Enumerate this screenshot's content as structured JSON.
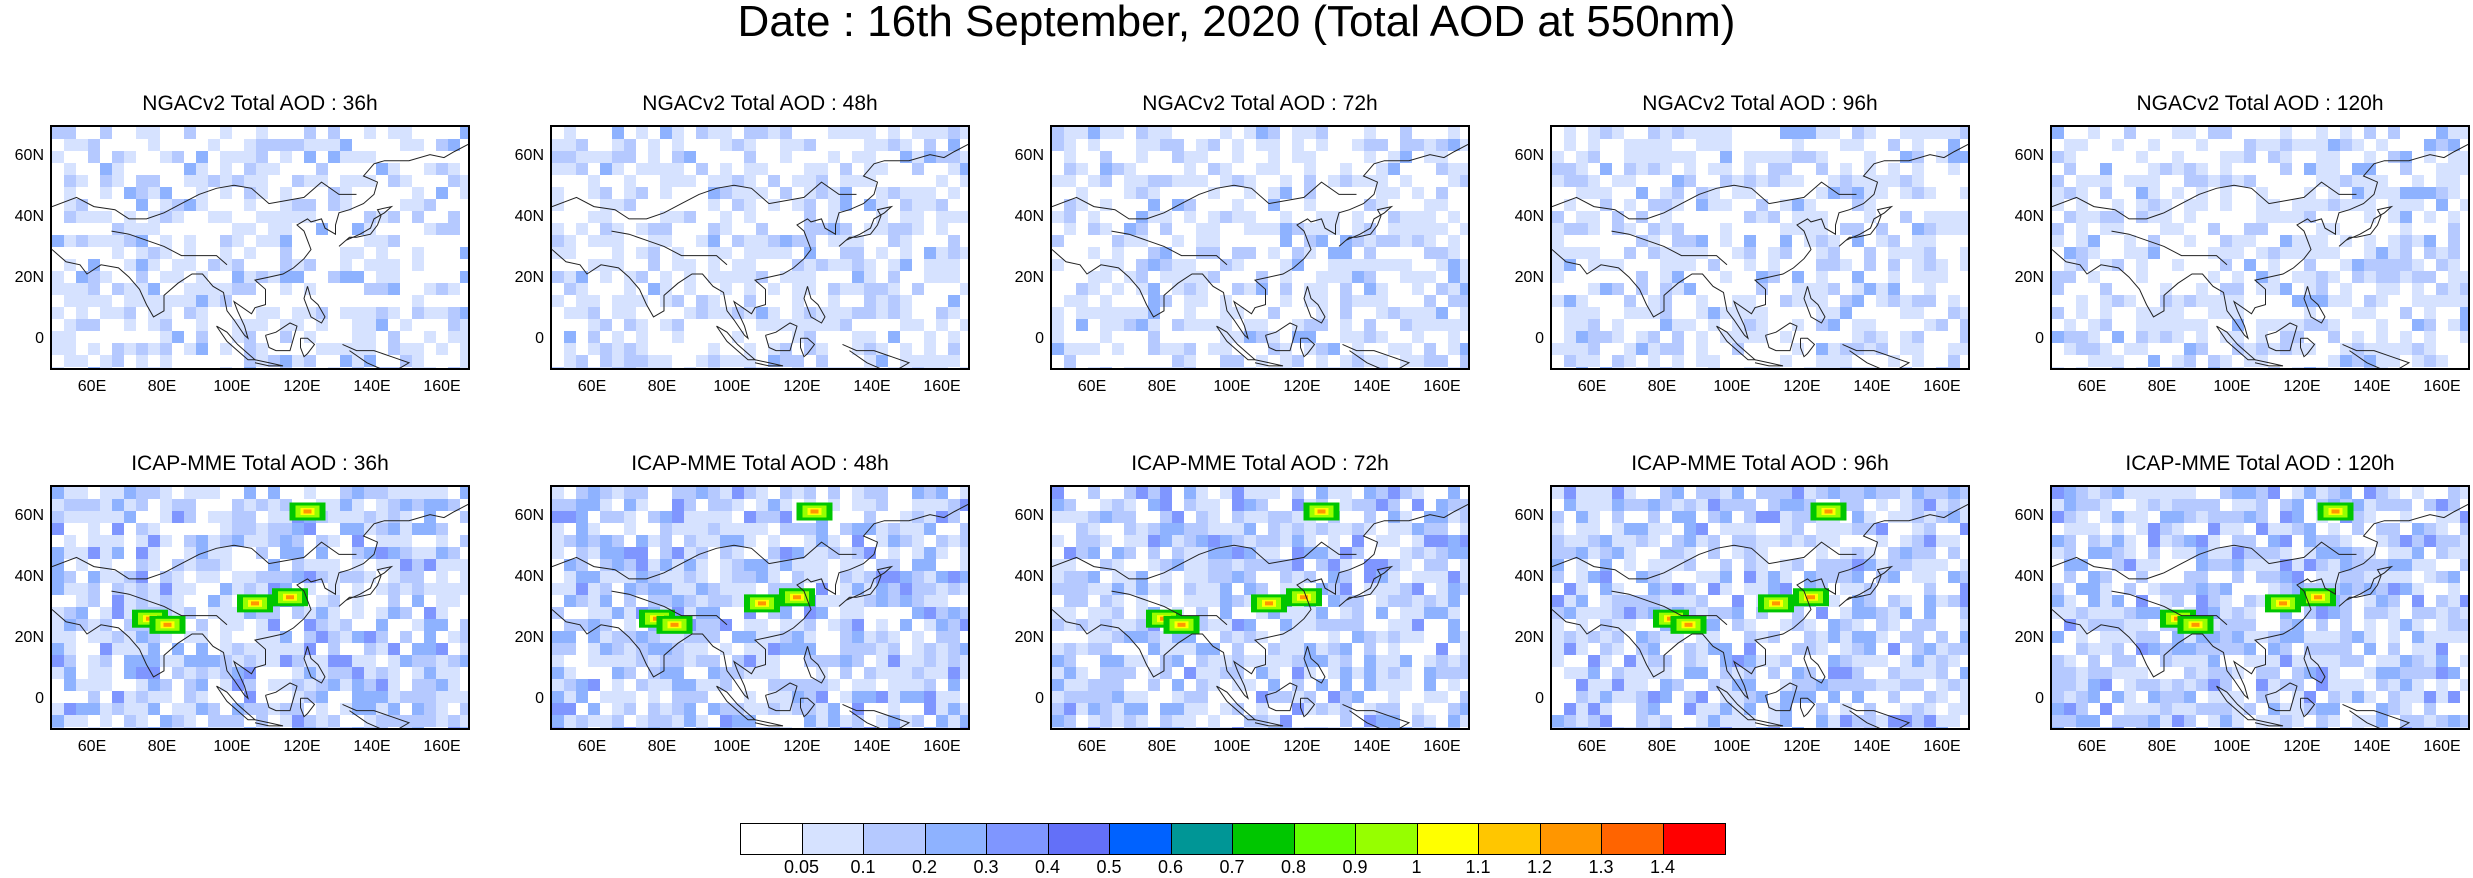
{
  "title": "Date : 16th September, 2020 (Total AOD at 550nm)",
  "rows": [
    {
      "model": "NGACv2",
      "panels": [
        {
          "title": "NGACv2 Total AOD : 36h"
        },
        {
          "title": "NGACv2 Total AOD : 48h"
        },
        {
          "title": "NGACv2 Total AOD : 72h"
        },
        {
          "title": "NGACv2 Total AOD : 96h"
        },
        {
          "title": "NGACv2 Total AOD : 120h"
        }
      ]
    },
    {
      "model": "ICAP-MME",
      "panels": [
        {
          "title": "ICAP-MME Total AOD : 36h"
        },
        {
          "title": "ICAP-MME Total AOD : 48h"
        },
        {
          "title": "ICAP-MME Total AOD : 72h"
        },
        {
          "title": "ICAP-MME Total AOD : 96h"
        },
        {
          "title": "ICAP-MME Total AOD : 120h"
        }
      ]
    }
  ],
  "map": {
    "lon_range": [
      48,
      168
    ],
    "lat_range": [
      -10,
      70
    ],
    "lat_ticks": [
      "60N",
      "40N",
      "20N",
      "0"
    ],
    "lat_values": [
      60,
      40,
      20,
      0
    ],
    "lon_ticks": [
      "60E",
      "80E",
      "100E",
      "120E",
      "140E",
      "160E"
    ],
    "lon_values": [
      60,
      80,
      100,
      120,
      140,
      160
    ]
  },
  "colorbar": {
    "colors": [
      "#ffffff",
      "#d6e2ff",
      "#b5c9ff",
      "#8eb2ff",
      "#7f96ff",
      "#6370f8",
      "#0062ff",
      "#009696",
      "#00c600",
      "#63ff00",
      "#96ff00",
      "#ffff00",
      "#ffc600",
      "#ff9600",
      "#ff6400",
      "#ff0000"
    ],
    "labels": [
      "0.05",
      "0.1",
      "0.2",
      "0.3",
      "0.4",
      "0.5",
      "0.6",
      "0.7",
      "0.8",
      "0.9",
      "1",
      "1.1",
      "1.2",
      "1.3",
      "1.4"
    ]
  }
}
